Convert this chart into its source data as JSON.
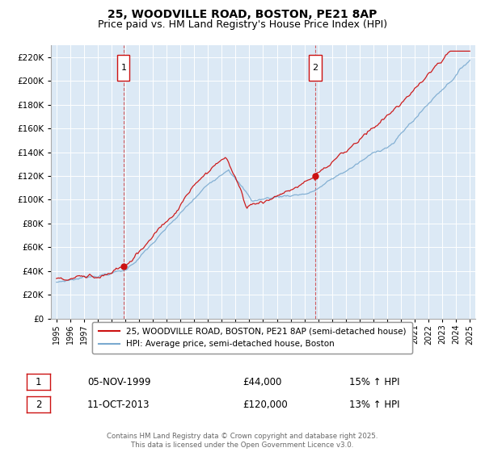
{
  "title": "25, WOODVILLE ROAD, BOSTON, PE21 8AP",
  "subtitle": "Price paid vs. HM Land Registry's House Price Index (HPI)",
  "ylim": [
    0,
    230000
  ],
  "yticks": [
    0,
    20000,
    40000,
    60000,
    80000,
    100000,
    120000,
    140000,
    160000,
    180000,
    200000,
    220000
  ],
  "ytick_labels": [
    "£0",
    "£20K",
    "£40K",
    "£60K",
    "£80K",
    "£100K",
    "£120K",
    "£140K",
    "£160K",
    "£180K",
    "£200K",
    "£220K"
  ],
  "xticks": [
    1995,
    1996,
    1997,
    1998,
    1999,
    2000,
    2001,
    2002,
    2003,
    2004,
    2005,
    2006,
    2007,
    2008,
    2009,
    2010,
    2011,
    2012,
    2013,
    2014,
    2015,
    2016,
    2017,
    2018,
    2019,
    2020,
    2021,
    2022,
    2023,
    2024,
    2025
  ],
  "sale1_x": 1999.87,
  "sale1_y": 44000,
  "sale1_label": "1",
  "sale1_date": "05-NOV-1999",
  "sale1_price": "£44,000",
  "sale1_hpi": "15% ↑ HPI",
  "sale2_x": 2013.78,
  "sale2_y": 120000,
  "sale2_label": "2",
  "sale2_date": "11-OCT-2013",
  "sale2_price": "£120,000",
  "sale2_hpi": "13% ↑ HPI",
  "vline1_x": 1999.87,
  "vline2_x": 2013.78,
  "red_color": "#cc1111",
  "blue_color": "#7aaad0",
  "plot_bg": "#dce9f5",
  "legend1": "25, WOODVILLE ROAD, BOSTON, PE21 8AP (semi-detached house)",
  "legend2": "HPI: Average price, semi-detached house, Boston",
  "footer": "Contains HM Land Registry data © Crown copyright and database right 2025.\nThis data is licensed under the Open Government Licence v3.0.",
  "title_fontsize": 10,
  "subtitle_fontsize": 9
}
